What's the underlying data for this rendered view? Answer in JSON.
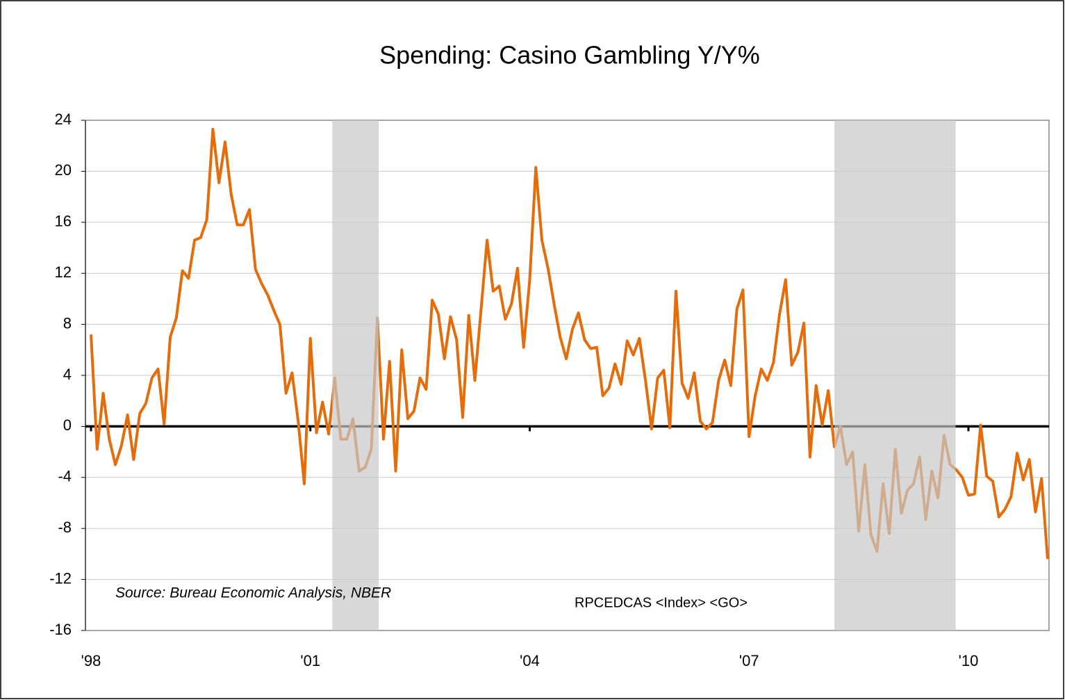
{
  "chart_data": {
    "type": "line",
    "title": "Spending: Casino Gambling Y/Y%",
    "annotations": [
      "Source: Bureau Economic Analysis, NBER",
      "RPCEDCAS <Index> <GO>"
    ],
    "categories": [
      "'98",
      null,
      null,
      null,
      null,
      null,
      null,
      null,
      null,
      null,
      null,
      null,
      null,
      null,
      null,
      null,
      null,
      null,
      null,
      null,
      null,
      null,
      null,
      null,
      null,
      null,
      null,
      null,
      null,
      null,
      null,
      null,
      null,
      null,
      null,
      null,
      "'01",
      null,
      null,
      null,
      null,
      null,
      null,
      null,
      null,
      null,
      null,
      null,
      null,
      null,
      null,
      null,
      null,
      null,
      null,
      null,
      null,
      null,
      null,
      null,
      null,
      null,
      null,
      null,
      null,
      null,
      null,
      null,
      null,
      null,
      null,
      null,
      "'04",
      null,
      null,
      null,
      null,
      null,
      null,
      null,
      null,
      null,
      null,
      null,
      null,
      null,
      null,
      null,
      null,
      null,
      null,
      null,
      null,
      null,
      null,
      null,
      null,
      null,
      null,
      null,
      null,
      null,
      null,
      null,
      null,
      null,
      null,
      null,
      "'07",
      null,
      null,
      null,
      null,
      null,
      null,
      null,
      null,
      null,
      null,
      null,
      null,
      null,
      null,
      null,
      null,
      null,
      null,
      null,
      null,
      null,
      null,
      null,
      null,
      null,
      null,
      null,
      null,
      null,
      null,
      null,
      null,
      null,
      null,
      null,
      "'10",
      null,
      null,
      null,
      null,
      null,
      null,
      null,
      null,
      null,
      null,
      null,
      null,
      null
    ],
    "values": [
      7.2,
      -1.8,
      2.6,
      -1,
      -3,
      -1.5,
      0.9,
      -2.6,
      1,
      1.8,
      3.8,
      4.5,
      0.2,
      7,
      8.5,
      12.2,
      11.6,
      14.6,
      14.8,
      16.2,
      23.3,
      19.1,
      22.3,
      18.2,
      15.8,
      15.8,
      17,
      12.3,
      11.2,
      10.3,
      9.1,
      8,
      2.6,
      4.2,
      0.4,
      -4.5,
      6.9,
      -0.5,
      1.9,
      -0.6,
      3.8,
      -1,
      -1,
      0.6,
      -3.5,
      -3.2,
      -1.8,
      8.5,
      -1,
      5.1,
      -3.5,
      6,
      0.6,
      1.2,
      3.8,
      2.9,
      9.9,
      8.8,
      5.3,
      8.6,
      6.8,
      0.7,
      8.7,
      3.6,
      9.1,
      14.6,
      10.6,
      11,
      8.4,
      9.6,
      12.4,
      6.2,
      11.5,
      20.3,
      14.6,
      12.4,
      9.6,
      7,
      5.3,
      7.6,
      8.9,
      6.8,
      6.1,
      6.2,
      2.4,
      3,
      4.9,
      3.3,
      6.7,
      5.6,
      6.9,
      3.6,
      -0.2,
      3.8,
      4.4,
      -0.1,
      10.6,
      3.4,
      2.2,
      4.2,
      0.4,
      -0.2,
      0.3,
      3.6,
      5.2,
      3.2,
      9.2,
      10.7,
      -0.8,
      2.4,
      4.5,
      3.6,
      5,
      8.8,
      11.5,
      4.8,
      5.8,
      8.1,
      -2.4,
      3.2,
      0.1,
      2.8,
      -1.6,
      0,
      -3,
      -2,
      -8.2,
      -3,
      -8.5,
      -9.8,
      -4.5,
      -8.4,
      -1.8,
      -6.8,
      -5,
      -4.5,
      -2.4,
      -7.3,
      -3.5,
      -5.6,
      -0.7,
      -3,
      -3.4,
      -4,
      -5.4,
      -5.3,
      0.1,
      -3.9,
      -4.3,
      -7.1,
      -6.5,
      -5.5,
      -2.1,
      -4.2,
      -2.6,
      -6.7,
      -4.1,
      -10.4
    ],
    "color": "#e46c0a",
    "shaded_periods": [
      [
        39.6,
        47.2
      ],
      [
        122,
        141.9
      ]
    ],
    "ylim": [
      -16,
      24
    ],
    "yticks": [
      -16,
      -12,
      -8,
      -4,
      0,
      4,
      8,
      12,
      16,
      20,
      24
    ],
    "grid": true
  }
}
